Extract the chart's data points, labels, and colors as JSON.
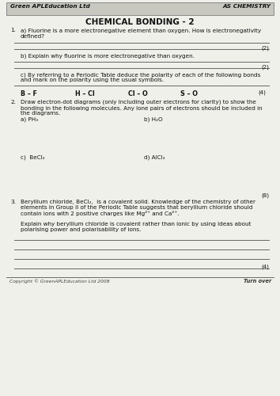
{
  "header_left": "Green APLEducation Ltd",
  "header_right": "AS CHEMISTRY",
  "title": "CHEMICAL BONDING - 2",
  "bg_color": "#f0f0eb",
  "header_bg": "#c8c8c0",
  "q1a": "a) Fluorine is a more electronegative element than oxygen. How is electronegativity\ndefined?",
  "q1b": "b) Explain why fluorine is more electronegative than oxygen.",
  "q1c": "c) By referring to a Periodic Table deduce the polarity of each of the following bonds\nand mark on the polarity using the usual symbols.",
  "bonds": [
    "B – F",
    "H – Cl",
    "Cl – O",
    "S – O"
  ],
  "mark_1c": "(4)",
  "mark_1a": "(2)",
  "mark_1b": "(2)",
  "q2_intro": "Draw electron-dot diagrams (only including outer electrons for clarity) to show the\nbonding in the following molecules. Any lone pairs of electrons should be included in\nthe diagrams.",
  "q2a": "a) PH₃",
  "q2b": "b) H₂O",
  "q2c": "c)  BeCl₂",
  "q2d": "d) AlCl₃",
  "mark_2": "(8)",
  "q3_text1": "Beryllium chloride, BeCl₂,  is a covalent solid. Knowledge of the chemistry of other\nelements in Group II of the Periodic Table suggests that beryllium chloride should\ncontain ions with 2 positive charges like Mg²⁺ and Ca²⁺.",
  "q3_text2": "Explain why beryllium chloride is covalent rather than ionic by using ideas about\npolarising power and polarisability of ions.",
  "mark_3": "(4)",
  "footer_left": "Copyright © GreenAPLEducation Ltd 2008",
  "footer_right": "Turn over"
}
